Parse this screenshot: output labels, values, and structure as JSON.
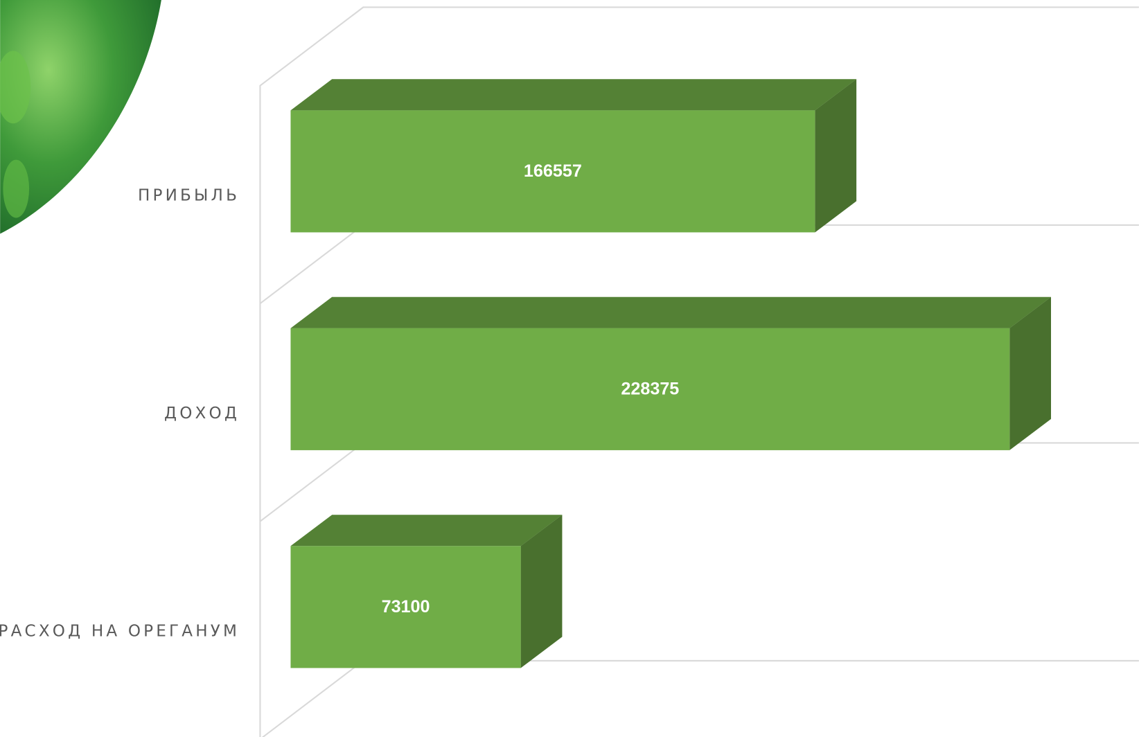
{
  "chart_data": {
    "type": "bar3d",
    "categories": [
      "ПРИБЫЛЬ",
      "ДОХОД",
      "РАСХОД НА ОРЕГАНУМ"
    ],
    "values": [
      166557,
      228375,
      73100
    ],
    "color": "#70ad47"
  }
}
